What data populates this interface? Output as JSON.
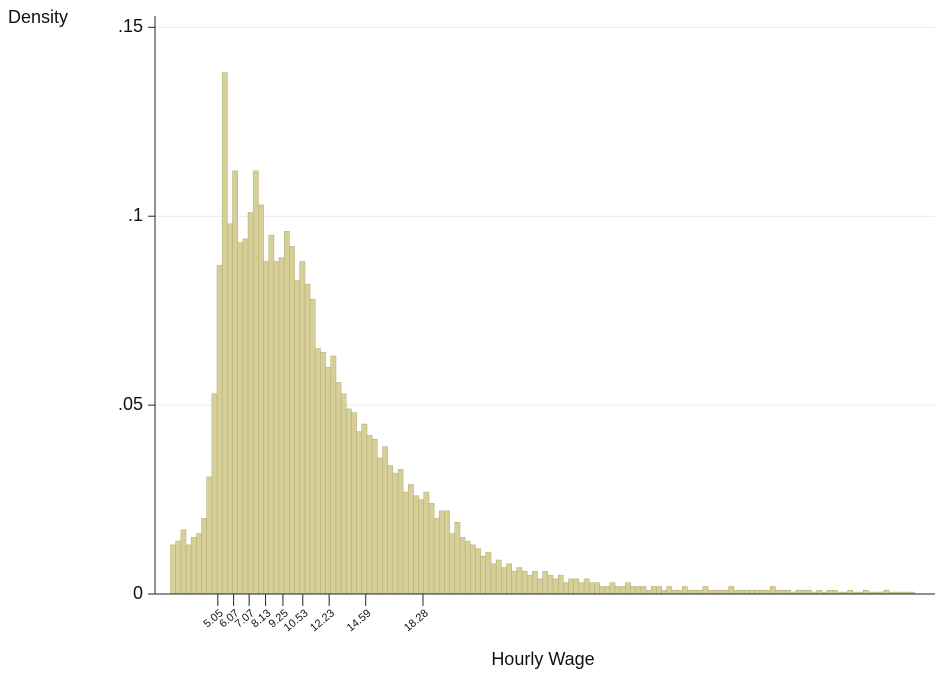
{
  "chart_data": {
    "type": "histogram",
    "ylabel": "Density",
    "xlabel": "Hourly Wage",
    "color": "#d6cf98",
    "edgecolor": "#b3ab72",
    "grid": true,
    "xlim": [
      1,
      51.3
    ],
    "ylim": [
      0,
      0.153
    ],
    "xticks": [
      5.05,
      6.07,
      7.07,
      8.13,
      9.25,
      10.53,
      12.23,
      14.59,
      18.28
    ],
    "yticks": [
      0,
      {
        "value": 0.05,
        "label": ".05"
      },
      {
        "value": 0.1,
        "label": ".1"
      },
      {
        "value": 0.15,
        "label": ".15"
      }
    ],
    "bins": [
      2,
      2.33,
      2.67,
      3,
      3.33,
      3.67,
      4,
      4.33,
      4.67,
      5,
      5.33,
      5.67,
      6,
      6.33,
      6.67,
      7,
      7.33,
      7.67,
      8,
      8.33,
      8.67,
      9,
      9.33,
      9.67,
      10,
      10.33,
      10.67,
      11,
      11.33,
      11.67,
      12,
      12.33,
      12.67,
      13,
      13.33,
      13.67,
      14,
      14.33,
      14.67,
      15,
      15.33,
      15.67,
      16,
      16.33,
      16.67,
      17,
      17.33,
      17.67,
      18,
      18.33,
      18.67,
      19,
      19.33,
      19.67,
      20,
      20.33,
      20.67,
      21,
      21.33,
      21.67,
      22,
      22.33,
      22.67,
      23,
      23.33,
      23.67,
      24,
      24.33,
      24.67,
      25,
      25.33,
      25.67,
      26,
      26.33,
      26.67,
      27,
      27.33,
      27.67,
      28,
      28.33,
      28.67,
      29,
      29.33,
      29.67,
      30,
      30.33,
      30.67,
      31,
      31.33,
      31.67,
      32,
      32.33,
      32.67,
      33,
      33.33,
      33.67,
      34,
      34.33,
      34.67,
      35,
      35.33,
      35.67,
      36,
      36.33,
      36.67,
      37,
      37.33,
      37.67,
      38,
      38.33,
      38.67,
      39,
      39.33,
      39.67,
      40,
      40.33,
      40.67,
      41,
      41.33,
      41.67,
      42,
      42.33,
      42.67,
      43,
      43.33,
      43.67,
      44,
      44.33,
      44.67,
      45,
      45.33,
      45.67,
      46,
      46.33,
      46.67,
      47,
      47.33,
      47.67,
      48,
      48.33,
      48.67,
      49,
      49.33,
      49.67,
      50
    ],
    "values": [
      0.013,
      0.014,
      0.017,
      0.013,
      0.015,
      0.016,
      0.02,
      0.031,
      0.053,
      0.087,
      0.138,
      0.098,
      0.112,
      0.093,
      0.094,
      0.101,
      0.112,
      0.103,
      0.088,
      0.095,
      0.088,
      0.089,
      0.096,
      0.092,
      0.083,
      0.088,
      0.082,
      0.078,
      0.065,
      0.064,
      0.06,
      0.063,
      0.056,
      0.053,
      0.049,
      0.048,
      0.043,
      0.045,
      0.042,
      0.041,
      0.036,
      0.039,
      0.034,
      0.032,
      0.033,
      0.027,
      0.029,
      0.026,
      0.025,
      0.027,
      0.024,
      0.02,
      0.022,
      0.022,
      0.016,
      0.019,
      0.015,
      0.014,
      0.013,
      0.012,
      0.01,
      0.011,
      0.008,
      0.009,
      0.007,
      0.008,
      0.006,
      0.007,
      0.006,
      0.005,
      0.006,
      0.004,
      0.006,
      0.005,
      0.004,
      0.005,
      0.003,
      0.004,
      0.004,
      0.003,
      0.004,
      0.003,
      0.003,
      0.002,
      0.002,
      0.003,
      0.002,
      0.002,
      0.003,
      0.002,
      0.002,
      0.002,
      0.001,
      0.002,
      0.002,
      0.001,
      0.002,
      0.001,
      0.001,
      0.002,
      0.001,
      0.001,
      0.001,
      0.002,
      0.001,
      0.001,
      0.001,
      0.001,
      0.002,
      0.001,
      0.001,
      0.001,
      0.001,
      0.001,
      0.001,
      0.001,
      0.002,
      0.001,
      0.001,
      0.001,
      0.0005,
      0.001,
      0.001,
      0.001,
      0.0005,
      0.001,
      0.0005,
      0.001,
      0.001,
      0.0005,
      0.0005,
      0.001,
      0.0005,
      0.0005,
      0.001,
      0.0005,
      0.0005,
      0.0005,
      0.001,
      0.0005,
      0.0005,
      0.0005,
      0.0005,
      0.0005
    ]
  }
}
